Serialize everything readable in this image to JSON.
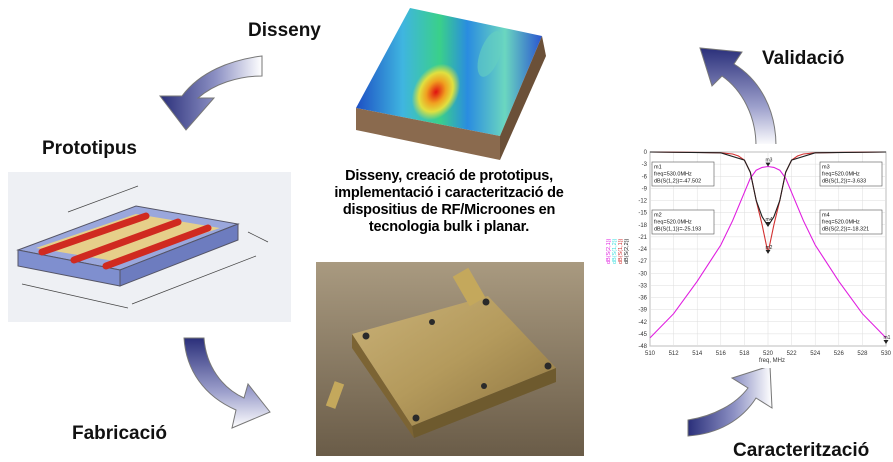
{
  "stages": {
    "disseny": "Disseny",
    "prototipus": "Prototipus",
    "fabricacio": "Fabricació",
    "validacio": "Validació",
    "caracteritzacio": "Caracterització"
  },
  "center_caption": "Disseny, creació de prototipus, implementació i caracterització de dispositius de RF/Microones en tecnologia bulk i planar.",
  "chart_data": {
    "type": "line",
    "xlabel": "freq, MHz",
    "xlim": [
      510,
      530
    ],
    "ylim": [
      -48,
      0
    ],
    "x_ticks": [
      510,
      512,
      514,
      516,
      518,
      520,
      522,
      524,
      526,
      528,
      530
    ],
    "y_ticks": [
      0,
      -3,
      -6,
      -9,
      -12,
      -15,
      -18,
      -21,
      -24,
      -27,
      -30,
      -33,
      -36,
      -39,
      -42,
      -45,
      -48
    ],
    "legend": [
      "dB(S(2,1))",
      "dB(S(1,2))",
      "dB(S(1,1))",
      "dB(S(2,2))"
    ],
    "series_colors": [
      "#e01ee0",
      "#3cdede",
      "#d23030",
      "#202020"
    ],
    "series": [
      {
        "name": "dB(S(2,1))",
        "x": [
          510,
          512,
          514,
          516,
          517,
          518,
          518.5,
          519,
          519.5,
          520,
          520.5,
          521,
          521.5,
          522,
          523,
          524,
          526,
          528,
          530
        ],
        "values": [
          -46,
          -40,
          -32,
          -23,
          -17,
          -10,
          -6.5,
          -4.5,
          -3.8,
          -3.6,
          -3.8,
          -4.5,
          -6.5,
          -10,
          -17,
          -23,
          -32,
          -40,
          -46
        ]
      },
      {
        "name": "dB(S(1,1))",
        "x": [
          510,
          514,
          516,
          517,
          517.5,
          518,
          518.5,
          519,
          519.5,
          520,
          520.5,
          521,
          521.5,
          522,
          522.5,
          523,
          524,
          526,
          530
        ],
        "values": [
          0,
          -0.1,
          -0.2,
          -0.5,
          -1,
          -2,
          -5,
          -12,
          -18,
          -25,
          -18,
          -12,
          -5,
          -2,
          -1,
          -0.5,
          -0.2,
          -0.1,
          0
        ]
      },
      {
        "name": "dB(S(2,2))",
        "x": [
          510,
          516,
          518,
          518.5,
          519,
          519.5,
          520,
          520.5,
          521,
          521.5,
          522,
          524,
          530
        ],
        "values": [
          0,
          -0.2,
          -2,
          -5,
          -12,
          -16,
          -18.3,
          -16,
          -12,
          -5,
          -2,
          -0.2,
          0
        ]
      }
    ],
    "markers": [
      {
        "id": "m1",
        "lines": [
          "m1",
          "freq=530.0MHz",
          "dB(S(1,2))=-47.502"
        ],
        "x": 530,
        "y": -47.502
      },
      {
        "id": "m2",
        "lines": [
          "m2",
          "freq=520.0MHz",
          "dB(S(1,1))=-25.193"
        ],
        "x": 520,
        "y": -25.193
      },
      {
        "id": "m3",
        "lines": [
          "m3",
          "freq=520.0MHz",
          "dB(S(1,2))=-3.633"
        ],
        "x": 520,
        "y": -3.633
      },
      {
        "id": "m4",
        "lines": [
          "m4",
          "freq=520.0MHz",
          "dB(S(2,2))=-18.321"
        ],
        "x": 520,
        "y": -18.321
      }
    ]
  }
}
